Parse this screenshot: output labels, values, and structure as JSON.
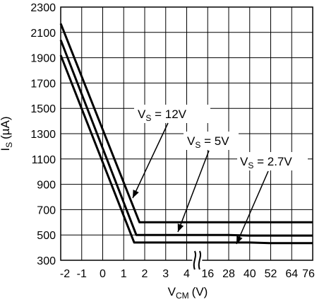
{
  "chart_data": {
    "type": "line",
    "title": "",
    "xlabel": {
      "main": "V",
      "sub": "CM",
      "unit": "(V)"
    },
    "ylabel": {
      "main": "I",
      "sub": "S",
      "unit": "(µA)"
    },
    "x_tick_labels": [
      "-2",
      "-1",
      "0",
      "1",
      "2",
      "3",
      "4",
      "16",
      "28",
      "40",
      "52",
      "64",
      "76"
    ],
    "y_tick_labels": [
      "300",
      "500",
      "700",
      "900",
      "1100",
      "1300",
      "1500",
      "1700",
      "1900",
      "2100",
      "2300"
    ],
    "ylim": [
      300,
      2300
    ],
    "x_axis_break": {
      "after": "4",
      "before": "16"
    },
    "grid": true,
    "legend": "none",
    "series": [
      {
        "label": {
          "prefix": "V",
          "sub": "S",
          "suffix": " = 12V"
        },
        "x": [
          -2,
          1.75,
          2,
          3,
          4,
          16,
          28,
          40,
          52,
          64,
          76
        ],
        "y": [
          2170,
          600,
          600,
          600,
          600,
          600,
          600,
          600,
          600,
          600,
          600
        ]
      },
      {
        "label": {
          "prefix": "V",
          "sub": "S",
          "suffix": " = 5V"
        },
        "x": [
          -2,
          1.6,
          2,
          3,
          4,
          16,
          28,
          40,
          52,
          64,
          76
        ],
        "y": [
          2040,
          500,
          500,
          500,
          500,
          500,
          500,
          495,
          495,
          495,
          495
        ]
      },
      {
        "label": {
          "prefix": "V",
          "sub": "S",
          "suffix": " = 2.7V"
        },
        "x": [
          -2,
          1.5,
          2,
          3,
          4,
          16,
          28,
          40,
          52,
          64,
          76
        ],
        "y": [
          1920,
          440,
          440,
          440,
          440,
          440,
          440,
          440,
          435,
          435,
          435
        ]
      }
    ]
  }
}
